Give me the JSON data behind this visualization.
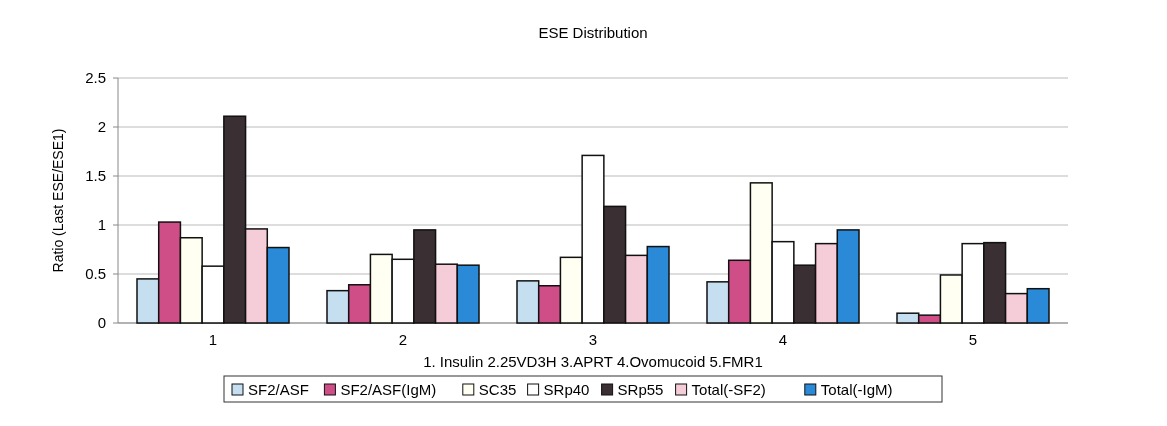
{
  "chart_data": {
    "type": "bar",
    "title": "ESE Distribution",
    "xlabel": "1. Insulin 2.25VD3H 3.APRT 4.Ovomucoid 5.FMR1",
    "ylabel": "Ratio (Last ESE/ESE1)",
    "categories": [
      "1",
      "2",
      "3",
      "4",
      "5"
    ],
    "series": [
      {
        "name": "SF2/ASF",
        "color": "#c5dff0",
        "values": [
          0.45,
          0.33,
          0.43,
          0.42,
          0.1
        ]
      },
      {
        "name": "SF2/ASF(IgM)",
        "color": "#d04e88",
        "values": [
          1.03,
          0.39,
          0.38,
          0.64,
          0.08
        ]
      },
      {
        "name": "SC35",
        "color": "#fffff2",
        "values": [
          0.87,
          0.7,
          0.67,
          1.43,
          0.49
        ]
      },
      {
        "name": "SRp40",
        "color": "#ffffff",
        "values": [
          0.58,
          0.65,
          1.71,
          0.83,
          0.81
        ]
      },
      {
        "name": "SRp55",
        "color": "#3a2f33",
        "values": [
          2.11,
          0.95,
          1.19,
          0.59,
          0.82
        ]
      },
      {
        "name": "Total(-SF2)",
        "color": "#f5cdd8",
        "values": [
          0.96,
          0.6,
          0.69,
          0.81,
          0.3
        ]
      },
      {
        "name": "Total(-IgM)",
        "color": "#2a8ad8",
        "values": [
          0.77,
          0.59,
          0.78,
          0.95,
          0.35
        ]
      }
    ],
    "ylim": [
      0,
      2.5
    ],
    "yticks": [
      0,
      0.5,
      1,
      1.5,
      2,
      2.5
    ],
    "grid": "y",
    "legend": "bottom"
  }
}
